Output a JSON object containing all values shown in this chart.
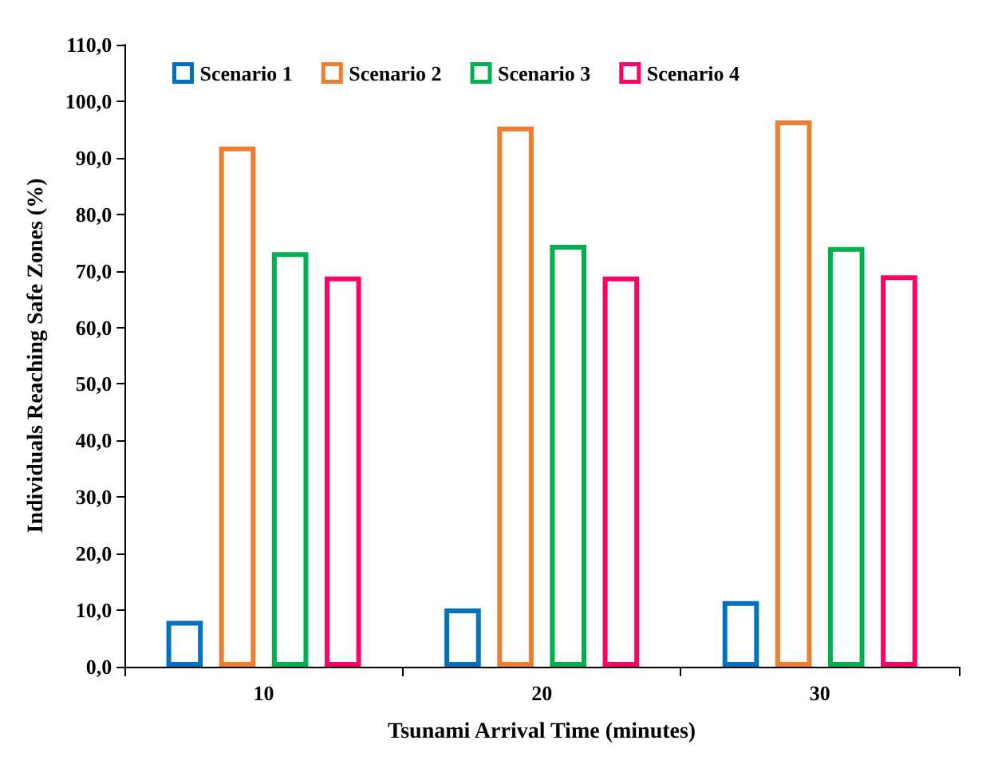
{
  "chart_data": {
    "type": "bar",
    "xlabel": "Tsunami Arrival Time (minutes)",
    "ylabel": "Individuals Reaching Safe Zones (%)",
    "categories": [
      "10",
      "20",
      "30"
    ],
    "series": [
      {
        "name": "Scenario 1",
        "color": "#0070c0",
        "values": [
          8.1,
          10.3,
          11.6
        ]
      },
      {
        "name": "Scenario 2",
        "color": "#ed7d31",
        "values": [
          92.0,
          95.5,
          96.6
        ]
      },
      {
        "name": "Scenario 3",
        "color": "#00b050",
        "values": [
          73.3,
          74.6,
          74.2
        ]
      },
      {
        "name": "Scenario 4",
        "color": "#ff0066",
        "values": [
          69.0,
          69.0,
          69.2
        ]
      }
    ],
    "ylim": [
      0,
      110
    ],
    "yticks": [
      {
        "value": 0,
        "label": "0,0"
      },
      {
        "value": 10,
        "label": "10,0"
      },
      {
        "value": 20,
        "label": "20,0"
      },
      {
        "value": 30,
        "label": "30,0"
      },
      {
        "value": 40,
        "label": "40,0"
      },
      {
        "value": 50,
        "label": "50,0"
      },
      {
        "value": 60,
        "label": "60,0"
      },
      {
        "value": 70,
        "label": "70,0"
      },
      {
        "value": 80,
        "label": "80,0"
      },
      {
        "value": 90,
        "label": "90,0"
      },
      {
        "value": 100,
        "label": "100,0"
      },
      {
        "value": 110,
        "label": "110,0"
      }
    ],
    "grid": false,
    "legend": "top left"
  }
}
